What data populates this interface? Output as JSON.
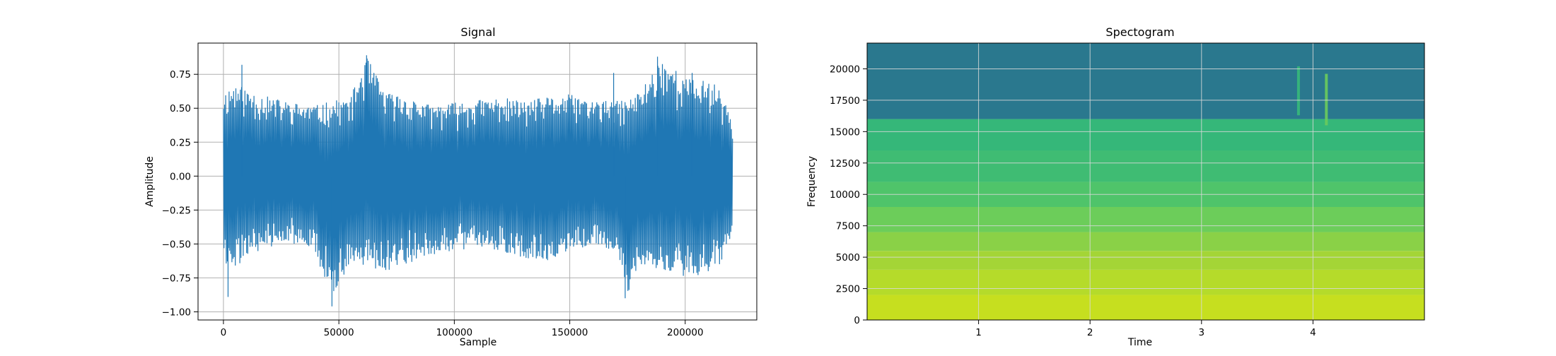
{
  "chart_data": [
    {
      "type": "line",
      "title": "Signal",
      "xlabel": "Sample",
      "ylabel": "Amplitude",
      "xlim": [
        -11000,
        231000
      ],
      "ylim": [
        -1.06,
        0.98
      ],
      "x_ticks": [
        0,
        50000,
        100000,
        150000,
        200000
      ],
      "y_ticks": [
        -1.0,
        -0.75,
        -0.5,
        -0.25,
        0.0,
        0.25,
        0.5,
        0.75
      ],
      "x_tick_labels": [
        "0",
        "50000",
        "100000",
        "150000",
        "200000"
      ],
      "y_tick_labels": [
        "−1.00",
        "−0.75",
        "−0.50",
        "−0.25",
        "0.00",
        "0.25",
        "0.50",
        "0.75"
      ],
      "grid": true,
      "series": [
        {
          "color": "#1f77b4",
          "x_range": [
            0,
            220500
          ],
          "envelope_points": [
            [
              0,
              0.62,
              -0.65
            ],
            [
              5000,
              0.68,
              -0.7
            ],
            [
              10000,
              0.64,
              -0.58
            ],
            [
              20000,
              0.58,
              -0.52
            ],
            [
              30000,
              0.54,
              -0.5
            ],
            [
              40000,
              0.52,
              -0.56
            ],
            [
              47000,
              0.55,
              -0.95
            ],
            [
              55000,
              0.58,
              -0.62
            ],
            [
              62000,
              0.88,
              -0.66
            ],
            [
              70000,
              0.62,
              -0.7
            ],
            [
              80000,
              0.58,
              -0.64
            ],
            [
              90000,
              0.52,
              -0.58
            ],
            [
              100000,
              0.54,
              -0.55
            ],
            [
              110000,
              0.56,
              -0.52
            ],
            [
              120000,
              0.58,
              -0.55
            ],
            [
              130000,
              0.55,
              -0.6
            ],
            [
              140000,
              0.58,
              -0.62
            ],
            [
              150000,
              0.6,
              -0.56
            ],
            [
              160000,
              0.56,
              -0.5
            ],
            [
              170000,
              0.55,
              -0.56
            ],
            [
              175000,
              0.56,
              -0.88
            ],
            [
              180000,
              0.62,
              -0.66
            ],
            [
              190000,
              0.88,
              -0.7
            ],
            [
              200000,
              0.72,
              -0.74
            ],
            [
              210000,
              0.7,
              -0.72
            ],
            [
              215000,
              0.66,
              -0.66
            ],
            [
              220500,
              0.4,
              -0.42
            ]
          ],
          "peaks": [
            {
              "x": 8000,
              "y": 0.82
            },
            {
              "x": 62000,
              "y": 0.89
            },
            {
              "x": 47000,
              "y": -0.96
            },
            {
              "x": 2000,
              "y": -0.89
            },
            {
              "x": 174000,
              "y": -0.9
            },
            {
              "x": 169000,
              "y": 0.76
            },
            {
              "x": 188000,
              "y": 0.88
            },
            {
              "x": 203000,
              "y": 0.76
            }
          ]
        }
      ]
    },
    {
      "type": "heatmap",
      "title": "Spectogram",
      "xlabel": "Time",
      "ylabel": "Frequency",
      "xlim": [
        0,
        5.0
      ],
      "ylim": [
        0,
        22050
      ],
      "x_ticks": [
        1,
        2,
        3,
        4
      ],
      "y_ticks": [
        0,
        2500,
        5000,
        7500,
        10000,
        12500,
        15000,
        17500,
        20000
      ],
      "x_tick_labels": [
        "1",
        "2",
        "3",
        "4"
      ],
      "y_tick_labels": [
        "0",
        "2500",
        "5000",
        "7500",
        "10000",
        "12500",
        "15000",
        "17500",
        "20000"
      ],
      "grid": true,
      "bands": [
        {
          "f_low": 0,
          "f_high": 2000,
          "color": "#c6df1f"
        },
        {
          "f_low": 2000,
          "f_high": 4000,
          "color": "#b5db2a"
        },
        {
          "f_low": 4000,
          "f_high": 5500,
          "color": "#a4d536"
        },
        {
          "f_low": 5500,
          "f_high": 7000,
          "color": "#8ad147"
        },
        {
          "f_low": 7000,
          "f_high": 9000,
          "color": "#6ccd5a"
        },
        {
          "f_low": 9000,
          "f_high": 11000,
          "color": "#4fc46a"
        },
        {
          "f_low": 11000,
          "f_high": 13500,
          "color": "#3fbc73"
        },
        {
          "f_low": 13500,
          "f_high": 16000,
          "color": "#35b779"
        },
        {
          "f_low": 16000,
          "f_high": 22050,
          "color": "#2a788e"
        }
      ],
      "events": [
        {
          "t": 3.87,
          "f_low": 16300,
          "f_high": 20200,
          "color": "#37b97a"
        },
        {
          "t": 4.12,
          "f_low": 15500,
          "f_high": 19600,
          "color": "#6acb5c"
        }
      ]
    }
  ]
}
